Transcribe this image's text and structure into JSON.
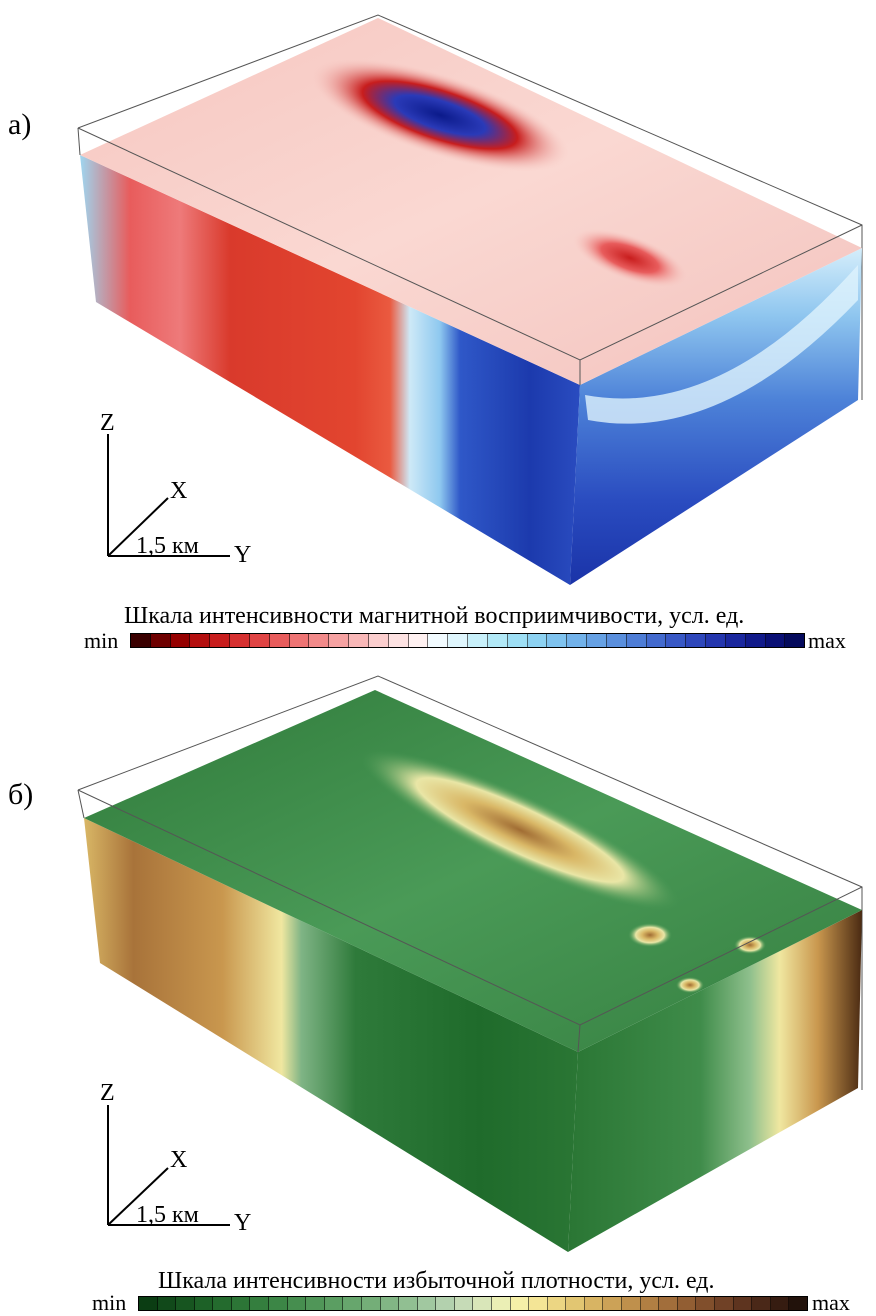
{
  "panels": [
    {
      "label": "а)",
      "axes": {
        "z": "Z",
        "x": "X",
        "y": "Y",
        "scale": "1,5 км"
      },
      "scale_title": "Шкала интенсивности магнитной восприимчивости, усл. ед.",
      "min_label": "min",
      "max_label": "max",
      "colormap": [
        "#3a0000",
        "#6e0000",
        "#950000",
        "#b40f0f",
        "#c81d1d",
        "#d63030",
        "#e04444",
        "#e85c5c",
        "#ee7474",
        "#f28a8a",
        "#f6a2a2",
        "#f9b8b8",
        "#fbcece",
        "#fde2e2",
        "#fff1f1",
        "#f2fbff",
        "#dff6fd",
        "#c8f0fa",
        "#b2e9f7",
        "#9edff5",
        "#8dd2f2",
        "#7fc3ef",
        "#72b2ea",
        "#66a1e4",
        "#5a8fdd",
        "#4e7dd6",
        "#436ace",
        "#3858c5",
        "#2e47bb",
        "#2436ae",
        "#1a279e",
        "#111a8a",
        "#0a1075",
        "#040a5c"
      ]
    },
    {
      "label": "б)",
      "axes": {
        "z": "Z",
        "x": "X",
        "y": "Y",
        "scale": "1,5 км"
      },
      "scale_title": "Шкала интенсивности избыточной плотности, усл. ед.",
      "min_label": "min",
      "max_label": "max",
      "colormap": [
        "#0b3d13",
        "#11491a",
        "#175520",
        "#1d6127",
        "#246b2e",
        "#2c7536",
        "#347e3e",
        "#3c8646",
        "#468e4f",
        "#509658",
        "#5b9e62",
        "#67a66d",
        "#74ae78",
        "#82b685",
        "#91bf92",
        "#a1c8a0",
        "#b3d1ae",
        "#c6dbb7",
        "#d9e6b9",
        "#ebefb5",
        "#f6f0a8",
        "#f4e596",
        "#ecd683",
        "#e2c672",
        "#d8b463",
        "#cca257",
        "#bf904c",
        "#b17f43",
        "#a26e3b",
        "#925e33",
        "#814f2c",
        "#704126",
        "#5e341f",
        "#4a2818",
        "#361c11",
        "#22120b"
      ]
    }
  ]
}
